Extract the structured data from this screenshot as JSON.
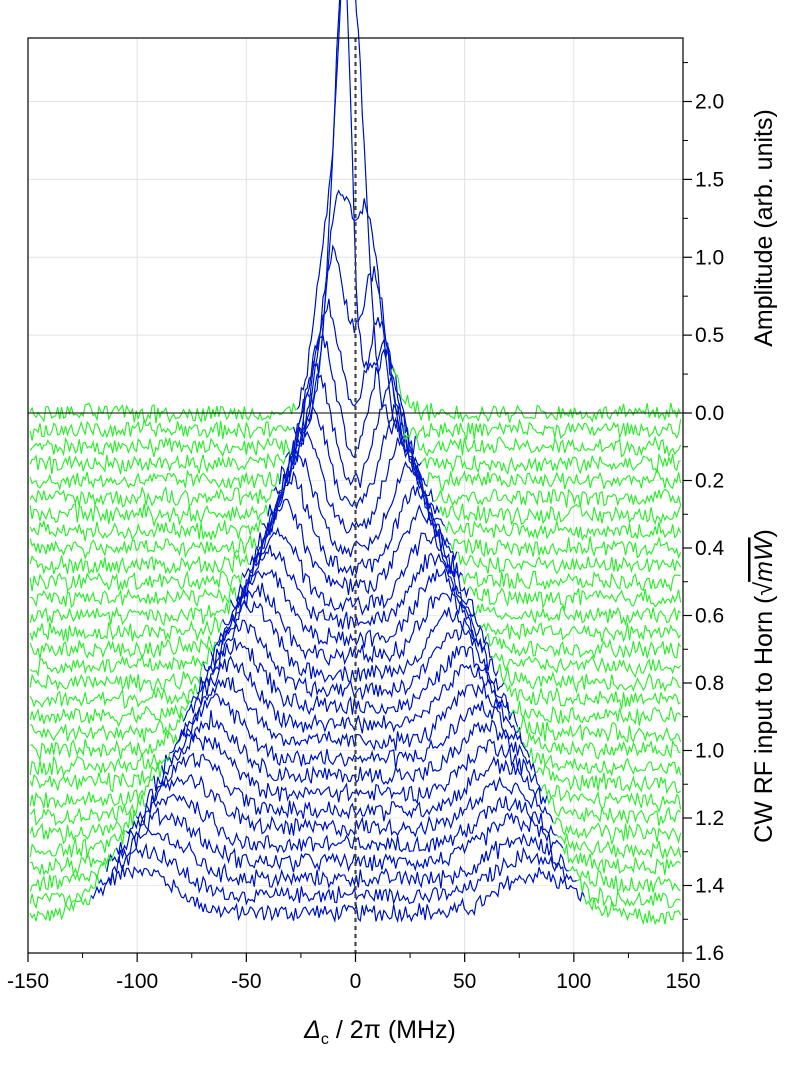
{
  "chart_data": {
    "type": "line",
    "subtype": "waterfall",
    "title": "",
    "xlabel": "Δc / 2π (MHz)",
    "xlabel_main": "Δ",
    "xlabel_sub": "c",
    "xlabel_rest": " / 2π (MHz)",
    "ylabel_right_top": "Amplitude (arb. units)",
    "ylabel_right_bottom": "CW RF input to Horn (√mW)",
    "ylabel_right_bottom_text": "CW RF input to Horn (",
    "ylabel_right_bottom_math": "mW",
    "ylabel_right_bottom_close": ")",
    "xlim": [
      -150,
      150
    ],
    "x_ticks": [
      -150,
      -100,
      -50,
      0,
      50,
      100,
      150
    ],
    "x_tick_labels": [
      "-150",
      "-100",
      "-50",
      "0",
      "50",
      "100",
      "150"
    ],
    "amplitude_ticks": [
      0.0,
      0.5,
      1.0,
      1.5,
      2.0
    ],
    "amplitude_tick_labels": [
      "0.0",
      "0.5",
      "1.0",
      "1.5",
      "2.0"
    ],
    "rf_ticks": [
      0.2,
      0.4,
      0.6,
      0.8,
      1.0,
      1.2,
      1.4,
      1.6
    ],
    "rf_tick_labels": [
      "0.2",
      "0.4",
      "0.6",
      "0.8",
      "1.0",
      "1.2",
      "1.4",
      "1.6"
    ],
    "amplitude_range": [
      0,
      2.35
    ],
    "rf_range": [
      0,
      1.6
    ],
    "series_colors": {
      "near_resonance": "#0000e0",
      "off_resonance": "#22ee22"
    },
    "reference_line_x": 0,
    "grid": true,
    "series_offsets": [
      0.0,
      0.05,
      0.1,
      0.15,
      0.2,
      0.25,
      0.3,
      0.35,
      0.4,
      0.45,
      0.5,
      0.55,
      0.6,
      0.65,
      0.7,
      0.75,
      0.8,
      0.85,
      0.9,
      0.95,
      1.0,
      1.05,
      1.1,
      1.15,
      1.2,
      1.25,
      1.3,
      1.35,
      1.4,
      1.45,
      1.5
    ],
    "autler_townes_peaks": [
      {
        "rf": 0.0,
        "peaks_mhz": [
          -5
        ],
        "peak_height": 2.3
      },
      {
        "rf": 0.1,
        "peaks_mhz": [
          -8,
          6
        ],
        "peak_height": 1.4
      },
      {
        "rf": 0.2,
        "peaks_mhz": [
          -13,
          11
        ],
        "peak_height": 1.0
      },
      {
        "rf": 0.4,
        "peaks_mhz": [
          -24,
          22
        ],
        "peak_height": 0.7
      },
      {
        "rf": 0.6,
        "peaks_mhz": [
          -36,
          33
        ],
        "peak_height": 0.5
      },
      {
        "rf": 0.8,
        "peaks_mhz": [
          -48,
          44
        ],
        "peak_height": 0.45
      },
      {
        "rf": 1.0,
        "peaks_mhz": [
          -60,
          55
        ],
        "peak_height": 0.4
      },
      {
        "rf": 1.2,
        "peaks_mhz": [
          -74,
          66
        ],
        "peak_height": 0.35
      },
      {
        "rf": 1.4,
        "peaks_mhz": [
          -92,
          76
        ],
        "peak_height": 0.3
      },
      {
        "rf": 1.5,
        "peaks_mhz": [
          -100,
          83
        ],
        "peak_height": 0.3
      }
    ]
  }
}
